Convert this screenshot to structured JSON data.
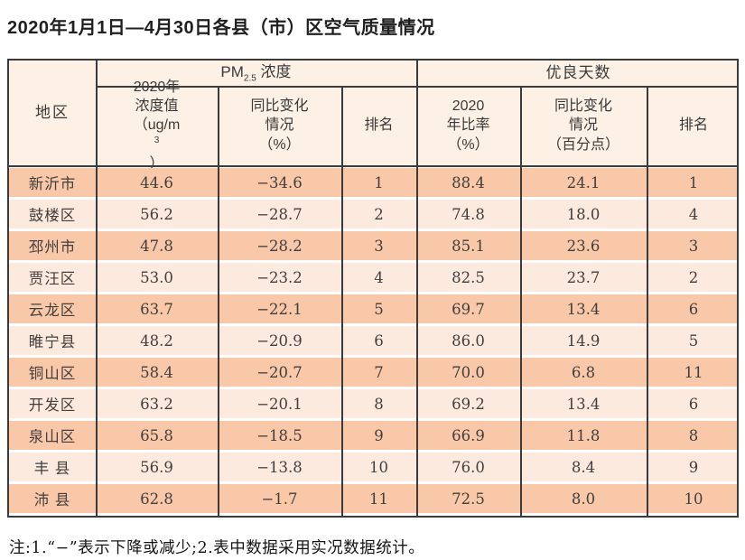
{
  "title": "2020年1月1日—4月30日各县（市）区空气质量情况",
  "note": "注:1.“−”表示下降或减少;2.表中数据采用实况数据统计。",
  "colors": {
    "row_dark": "#f8c8a9",
    "row_light": "#fdeadf",
    "header_bg": "#fdf0e5",
    "grid_line": "#3b3b3b"
  },
  "table": {
    "region_header": "地区",
    "group_pm": {
      "prefix": "PM",
      "sub": "2.5",
      "suffix": " 浓度"
    },
    "group_good": "优良天数",
    "sub": {
      "pm_value_l1": "2020年",
      "pm_value_l2": "浓度值",
      "pm_value_unit_pre": "（ug/m",
      "pm_value_unit_sup": "3",
      "pm_value_unit_post": "）",
      "pm_change_l1": "同比变化",
      "pm_change_l2": "情况",
      "pm_change_l3": "（%）",
      "pm_rank": "排名",
      "good_ratio_l1": "2020",
      "good_ratio_l2": "年比率",
      "good_ratio_l3": "（%）",
      "good_change_l1": "同比变化",
      "good_change_l2": "情况",
      "good_change_l3": "（百分点）",
      "good_rank": "排名"
    },
    "rows": [
      {
        "region": "新沂市",
        "pm_value": "44.6",
        "pm_change": "−34.6",
        "pm_rank": "1",
        "good_ratio": "88.4",
        "good_change": "24.1",
        "good_rank": "1"
      },
      {
        "region": "鼓楼区",
        "pm_value": "56.2",
        "pm_change": "−28.7",
        "pm_rank": "2",
        "good_ratio": "74.8",
        "good_change": "18.0",
        "good_rank": "4"
      },
      {
        "region": "邳州市",
        "pm_value": "47.8",
        "pm_change": "−28.2",
        "pm_rank": "3",
        "good_ratio": "85.1",
        "good_change": "23.6",
        "good_rank": "3"
      },
      {
        "region": "贾汪区",
        "pm_value": "53.0",
        "pm_change": "−23.2",
        "pm_rank": "4",
        "good_ratio": "82.5",
        "good_change": "23.7",
        "good_rank": "2"
      },
      {
        "region": "云龙区",
        "pm_value": "63.7",
        "pm_change": "−22.1",
        "pm_rank": "5",
        "good_ratio": "69.7",
        "good_change": "13.4",
        "good_rank": "6"
      },
      {
        "region": "睢宁县",
        "pm_value": "48.2",
        "pm_change": "−20.9",
        "pm_rank": "6",
        "good_ratio": "86.0",
        "good_change": "14.9",
        "good_rank": "5"
      },
      {
        "region": "铜山区",
        "pm_value": "58.4",
        "pm_change": "−20.7",
        "pm_rank": "7",
        "good_ratio": "70.0",
        "good_change": "6.8",
        "good_rank": "11"
      },
      {
        "region": "开发区",
        "pm_value": "63.2",
        "pm_change": "−20.1",
        "pm_rank": "8",
        "good_ratio": "69.2",
        "good_change": "13.4",
        "good_rank": "6"
      },
      {
        "region": "泉山区",
        "pm_value": "65.8",
        "pm_change": "−18.5",
        "pm_rank": "9",
        "good_ratio": "66.9",
        "good_change": "11.8",
        "good_rank": "8"
      },
      {
        "region": "丰 县",
        "pm_value": "56.9",
        "pm_change": "−13.8",
        "pm_rank": "10",
        "good_ratio": "76.0",
        "good_change": "8.4",
        "good_rank": "9"
      },
      {
        "region": "沛 县",
        "pm_value": "62.8",
        "pm_change": "−1.7",
        "pm_rank": "11",
        "good_ratio": "72.5",
        "good_change": "8.0",
        "good_rank": "10"
      }
    ]
  }
}
